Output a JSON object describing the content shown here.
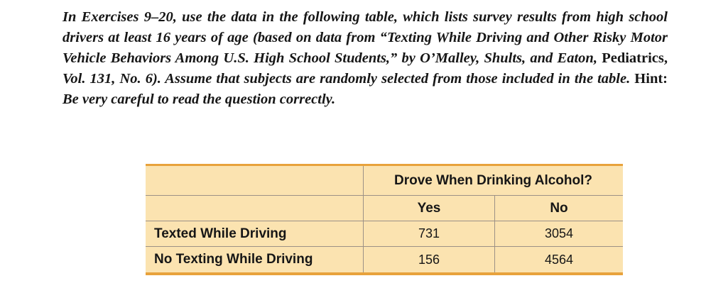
{
  "intro": {
    "seg1": "In Exercises 9–20, use the data in the following table, which lists survey results from high school drivers at least 16 years of age (based on data from “Texting While Driving and Other Risky Motor Vehicle Behaviors Among U.S. High School Students,” by O’Malley, Shults, and Eaton, ",
    "seg2_roman": "Pediatrics,",
    "seg3": " Vol. 131, No. 6). Assume that subjects are randomly selected from those included in the table. ",
    "seg4_roman": "Hint:",
    "seg5": " Be very careful to read the question correctly."
  },
  "table": {
    "span_header": "Drove When Drinking Alcohol?",
    "col_yes": "Yes",
    "col_no": "No",
    "rows": [
      {
        "label": "Texted While Driving",
        "yes": "731",
        "no": "3054"
      },
      {
        "label": "No Texting While Driving",
        "yes": "156",
        "no": "4564"
      }
    ]
  },
  "colors": {
    "table_background": "#FBE3B0",
    "table_accent_border": "#E8A23C",
    "grid_line": "#9c9186",
    "text": "#161616"
  }
}
